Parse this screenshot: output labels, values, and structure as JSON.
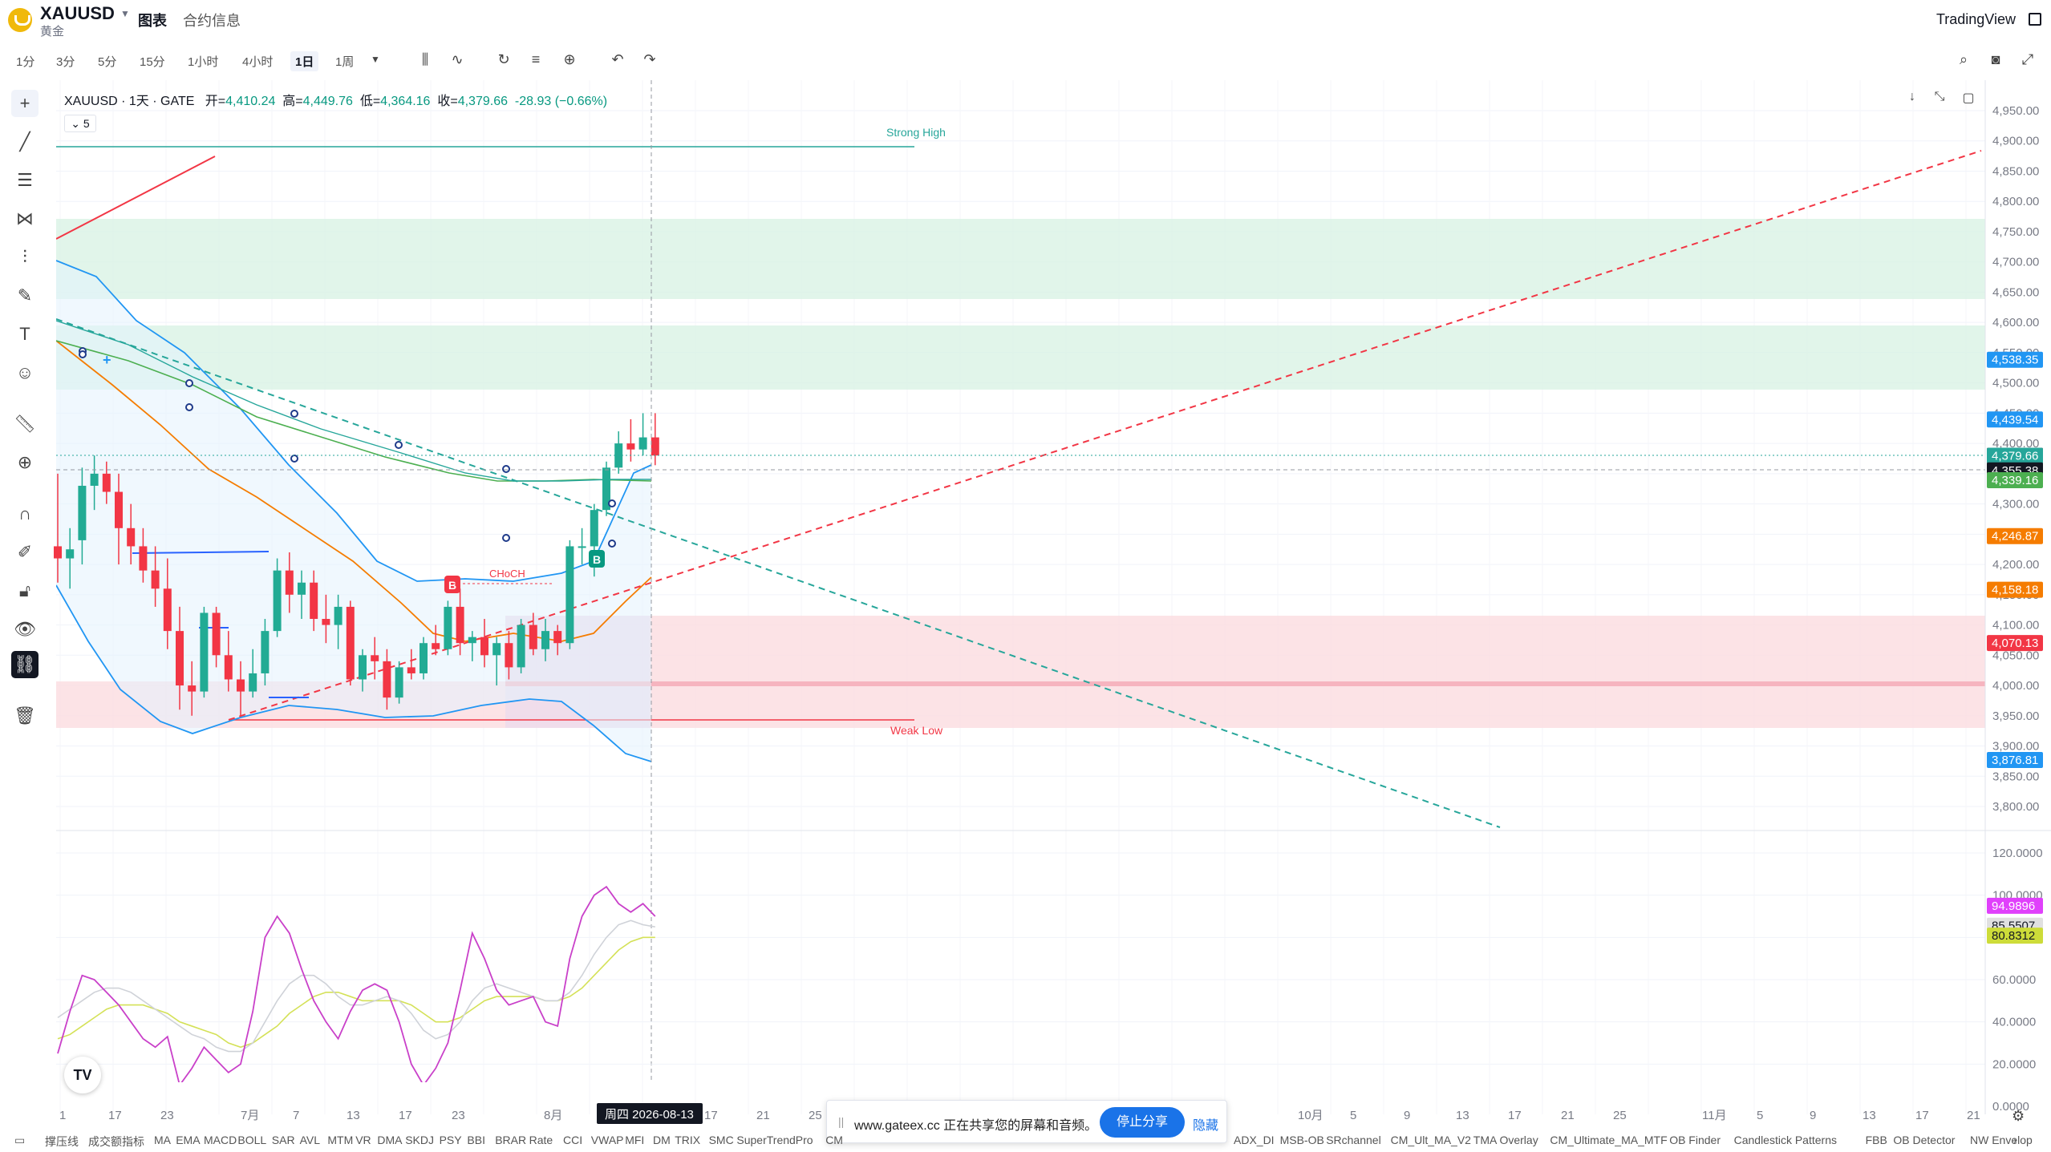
{
  "header": {
    "symbol": "XAUUSD",
    "symbol_sub": "黄金",
    "tabs": [
      "图表",
      "合约信息"
    ],
    "brand": "TradingView"
  },
  "toolbar": {
    "timeframes": [
      "1分",
      "3分",
      "5分",
      "15分",
      "1小时",
      "4小时",
      "1日",
      "1周"
    ],
    "active_timeframe": "1日",
    "icons": [
      "candles-icon",
      "indicators-icon",
      "replay-icon",
      "alert-list-icon",
      "add-icon",
      "undo-icon",
      "redo-icon",
      "search-icon",
      "camera-icon",
      "fullscreen-icon"
    ]
  },
  "left_tools": [
    "crosshair-icon",
    "trendline-icon",
    "horizontal-lines-icon",
    "pattern-icon",
    "fib-icon",
    "brush-icon",
    "text-icon",
    "emoji-icon",
    "ruler-icon",
    "zoom-icon",
    "magnet-icon",
    "lock-draw-icon",
    "lock-icon",
    "eye-icon",
    "link-icon",
    "trash-icon"
  ],
  "legend": {
    "title": "XAUUSD · 1天 · GATE",
    "open_label": "开=",
    "open": "4,410.24",
    "high_label": "高=",
    "high": "4,449.76",
    "low_label": "低=",
    "low": "4,364.16",
    "close_label": "收=",
    "close": "4,379.66",
    "change": "-28.93 (−0.66%)",
    "collapse": "5"
  },
  "chart_data": {
    "type": "line",
    "price_ticks": [
      "4,950.00",
      "4,900.00",
      "4,850.00",
      "4,800.00",
      "4,750.00",
      "4,700.00",
      "4,650.00",
      "4,600.00",
      "4,550.00",
      "4,500.00",
      "4,450.00",
      "4,400.00",
      "4,350.00",
      "4,300.00",
      "4,250.00",
      "4,200.00",
      "4,150.00",
      "4,100.00",
      "4,050.00",
      "4,000.00",
      "3,950.00",
      "3,900.00",
      "3,850.00",
      "3,800.00"
    ],
    "osc_ticks": [
      "120.0000",
      "100.0000",
      "80.0000",
      "60.0000",
      "40.0000",
      "20.0000",
      "0.0000"
    ],
    "price_badges": [
      {
        "label": "4,538.35",
        "color": "#2196f3"
      },
      {
        "label": "4,439.54",
        "color": "#2196f3"
      },
      {
        "label": "4,379.66",
        "color": "#4caf50"
      },
      {
        "label": "4,379.66",
        "color": "#131722"
      },
      {
        "label": "4,379.66",
        "color": "#f23645"
      },
      {
        "label": "4,379.66",
        "color": "#26a69a"
      },
      {
        "label": "4,355.38",
        "color": "#131722"
      },
      {
        "label": "4,339.16",
        "color": "#4caf50"
      },
      {
        "label": "4,246.87",
        "color": "#f57c00"
      },
      {
        "label": "4,158.18",
        "color": "#f57c00"
      },
      {
        "label": "4,070.13",
        "color": "#f23645"
      },
      {
        "label": "3,876.81",
        "color": "#2196f3"
      }
    ],
    "osc_badges": [
      {
        "label": "94.9896",
        "color": "#e040fb"
      },
      {
        "label": "85.5507",
        "color": "#e0e0e0"
      },
      {
        "label": "80.8312",
        "color": "#cddc39"
      }
    ],
    "x_labels": [
      "1",
      "17",
      "23",
      "7月",
      "7",
      "13",
      "17",
      "23",
      "8月",
      "周四 2026-08-13",
      "17",
      "21",
      "25",
      "10月",
      "5",
      "9",
      "13",
      "17",
      "21",
      "25",
      "11月",
      "5",
      "9",
      "13",
      "17",
      "21"
    ],
    "annotations": [
      "Strong High",
      "Weak Low",
      "CHoCH",
      "B",
      "B"
    ],
    "candles": [
      {
        "o": 4230,
        "h": 4350,
        "l": 4170,
        "c": 4210
      },
      {
        "o": 4210,
        "h": 4260,
        "l": 4160,
        "c": 4225
      },
      {
        "o": 4240,
        "h": 4360,
        "l": 4200,
        "c": 4330
      },
      {
        "o": 4330,
        "h": 4380,
        "l": 4290,
        "c": 4350
      },
      {
        "o": 4350,
        "h": 4370,
        "l": 4300,
        "c": 4320
      },
      {
        "o": 4320,
        "h": 4350,
        "l": 4200,
        "c": 4260
      },
      {
        "o": 4260,
        "h": 4300,
        "l": 4200,
        "c": 4230
      },
      {
        "o": 4230,
        "h": 4260,
        "l": 4170,
        "c": 4190
      },
      {
        "o": 4190,
        "h": 4230,
        "l": 4130,
        "c": 4160
      },
      {
        "o": 4160,
        "h": 4210,
        "l": 4060,
        "c": 4090
      },
      {
        "o": 4090,
        "h": 4130,
        "l": 3960,
        "c": 4000
      },
      {
        "o": 4000,
        "h": 4040,
        "l": 3950,
        "c": 3990
      },
      {
        "o": 3990,
        "h": 4130,
        "l": 3980,
        "c": 4120
      },
      {
        "o": 4120,
        "h": 4130,
        "l": 4030,
        "c": 4050
      },
      {
        "o": 4050,
        "h": 4090,
        "l": 3990,
        "c": 4010
      },
      {
        "o": 4010,
        "h": 4040,
        "l": 3950,
        "c": 3990
      },
      {
        "o": 3990,
        "h": 4060,
        "l": 3980,
        "c": 4020
      },
      {
        "o": 4020,
        "h": 4110,
        "l": 4000,
        "c": 4090
      },
      {
        "o": 4090,
        "h": 4210,
        "l": 4080,
        "c": 4190
      },
      {
        "o": 4190,
        "h": 4220,
        "l": 4120,
        "c": 4150
      },
      {
        "o": 4150,
        "h": 4190,
        "l": 4110,
        "c": 4170
      },
      {
        "o": 4170,
        "h": 4190,
        "l": 4090,
        "c": 4110
      },
      {
        "o": 4110,
        "h": 4150,
        "l": 4070,
        "c": 4100
      },
      {
        "o": 4100,
        "h": 4150,
        "l": 4060,
        "c": 4130
      },
      {
        "o": 4130,
        "h": 4140,
        "l": 4000,
        "c": 4010
      },
      {
        "o": 4010,
        "h": 4060,
        "l": 3990,
        "c": 4050
      },
      {
        "o": 4050,
        "h": 4080,
        "l": 4010,
        "c": 4040
      },
      {
        "o": 4040,
        "h": 4060,
        "l": 3960,
        "c": 3980
      },
      {
        "o": 3980,
        "h": 4040,
        "l": 3970,
        "c": 4030
      },
      {
        "o": 4030,
        "h": 4060,
        "l": 4010,
        "c": 4020
      },
      {
        "o": 4020,
        "h": 4080,
        "l": 4010,
        "c": 4070
      },
      {
        "o": 4070,
        "h": 4100,
        "l": 4050,
        "c": 4060
      },
      {
        "o": 4060,
        "h": 4140,
        "l": 4050,
        "c": 4130
      },
      {
        "o": 4130,
        "h": 4160,
        "l": 4050,
        "c": 4070
      },
      {
        "o": 4070,
        "h": 4090,
        "l": 4040,
        "c": 4080
      },
      {
        "o": 4080,
        "h": 4110,
        "l": 4030,
        "c": 4050
      },
      {
        "o": 4050,
        "h": 4080,
        "l": 4000,
        "c": 4070
      },
      {
        "o": 4070,
        "h": 4090,
        "l": 4010,
        "c": 4030
      },
      {
        "o": 4030,
        "h": 4110,
        "l": 4020,
        "c": 4100
      },
      {
        "o": 4100,
        "h": 4120,
        "l": 4050,
        "c": 4060
      },
      {
        "o": 4060,
        "h": 4110,
        "l": 4040,
        "c": 4090
      },
      {
        "o": 4090,
        "h": 4100,
        "l": 4050,
        "c": 4070
      },
      {
        "o": 4070,
        "h": 4240,
        "l": 4060,
        "c": 4230
      },
      {
        "o": 4230,
        "h": 4260,
        "l": 4200,
        "c": 4230
      },
      {
        "o": 4230,
        "h": 4300,
        "l": 4180,
        "c": 4290
      },
      {
        "o": 4290,
        "h": 4370,
        "l": 4280,
        "c": 4360
      },
      {
        "o": 4360,
        "h": 4420,
        "l": 4350,
        "c": 4400
      },
      {
        "o": 4400,
        "h": 4440,
        "l": 4370,
        "c": 4390
      },
      {
        "o": 4390,
        "h": 4450,
        "l": 4380,
        "c": 4410
      },
      {
        "o": 4410,
        "h": 4450,
        "l": 4364,
        "c": 4380
      }
    ],
    "rsi": [
      25,
      45,
      62,
      60,
      54,
      48,
      40,
      32,
      28,
      33,
      10,
      18,
      28,
      22,
      16,
      20,
      45,
      80,
      90,
      82,
      65,
      50,
      40,
      32,
      45,
      55,
      58,
      55,
      40,
      20,
      10,
      18,
      30,
      55,
      82,
      70,
      55,
      48,
      50,
      52,
      40,
      38,
      70,
      90,
      100,
      104,
      96,
      92,
      96,
      90
    ],
    "rsi_ma1": [
      42,
      46,
      50,
      54,
      56,
      56,
      54,
      50,
      46,
      42,
      38,
      34,
      32,
      28,
      26,
      26,
      30,
      40,
      50,
      58,
      62,
      62,
      58,
      52,
      48,
      48,
      50,
      52,
      50,
      44,
      36,
      32,
      34,
      40,
      50,
      56,
      58,
      56,
      54,
      52,
      50,
      50,
      54,
      62,
      72,
      80,
      86,
      88,
      86,
      85
    ],
    "rsi_ma2": [
      32,
      34,
      38,
      42,
      46,
      48,
      48,
      48,
      46,
      44,
      40,
      38,
      36,
      34,
      30,
      28,
      30,
      34,
      38,
      44,
      48,
      52,
      54,
      54,
      52,
      50,
      50,
      50,
      50,
      48,
      44,
      40,
      40,
      42,
      46,
      50,
      52,
      52,
      52,
      52,
      50,
      50,
      52,
      56,
      62,
      68,
      74,
      78,
      80,
      80
    ]
  },
  "share_bar": {
    "text": "www.gateex.cc 正在共享您的屏幕和音频。",
    "stop": "停止分享",
    "hide": "隐藏"
  },
  "indicators": [
    "撑压线",
    "成交额指标",
    "MA",
    "EMA",
    "MACD",
    "BOLL",
    "SAR",
    "AVL",
    "MTM",
    "VR",
    "DMA",
    "SKDJ",
    "PSY",
    "BBI",
    "BRAR",
    "Rate",
    "CCI",
    "VWAP",
    "MFI",
    "DM",
    "TRIX",
    "SMC",
    "SuperTrendPro",
    "CM",
    "ADX_DI",
    "MSB-OB",
    "SRchannel",
    "CM_Ult_MA_V2",
    "TMA Overlay",
    "CM_Ultimate_MA_MTF",
    "OB Finder",
    "Candlestick Patterns",
    "FBB",
    "OB Detector",
    "NW Envelop"
  ],
  "badge": "TV"
}
